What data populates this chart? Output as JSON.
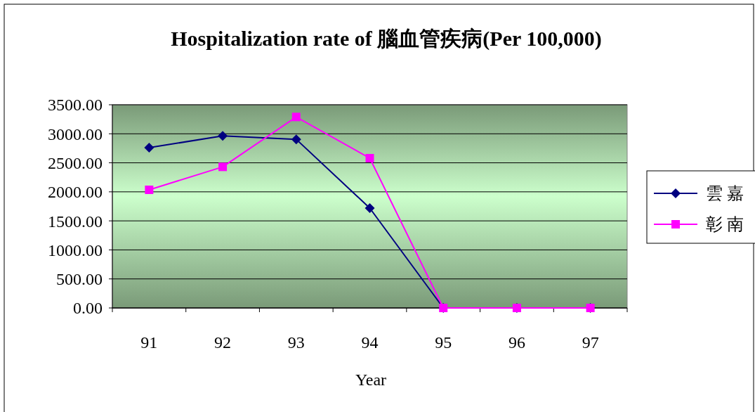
{
  "chart_data": {
    "type": "line",
    "title": "Hospitalization rate of 腦血管疾病(Per 100,000)",
    "xlabel": "Year",
    "categories": [
      "91",
      "92",
      "93",
      "94",
      "95",
      "96",
      "97"
    ],
    "series": [
      {
        "name": "雲嘉",
        "color": "#000080",
        "marker": "diamond",
        "values": [
          2760,
          2965,
          2905,
          1720,
          0,
          0,
          0
        ]
      },
      {
        "name": "彰南",
        "color": "#ff00ff",
        "marker": "square",
        "values": [
          2035,
          2430,
          3290,
          2580,
          0,
          0,
          0
        ]
      }
    ],
    "ylim": [
      0,
      3500
    ],
    "yticks": [
      {
        "value": 0,
        "label": "0.00"
      },
      {
        "value": 500,
        "label": "500.00"
      },
      {
        "value": 1000,
        "label": "1000.00"
      },
      {
        "value": 1500,
        "label": "1500.00"
      },
      {
        "value": 2000,
        "label": "2000.00"
      },
      {
        "value": 2500,
        "label": "2500.00"
      },
      {
        "value": 3000,
        "label": "3000.00"
      },
      {
        "value": 3500,
        "label": "3500.00"
      }
    ],
    "grid": "y",
    "legend": "right"
  }
}
